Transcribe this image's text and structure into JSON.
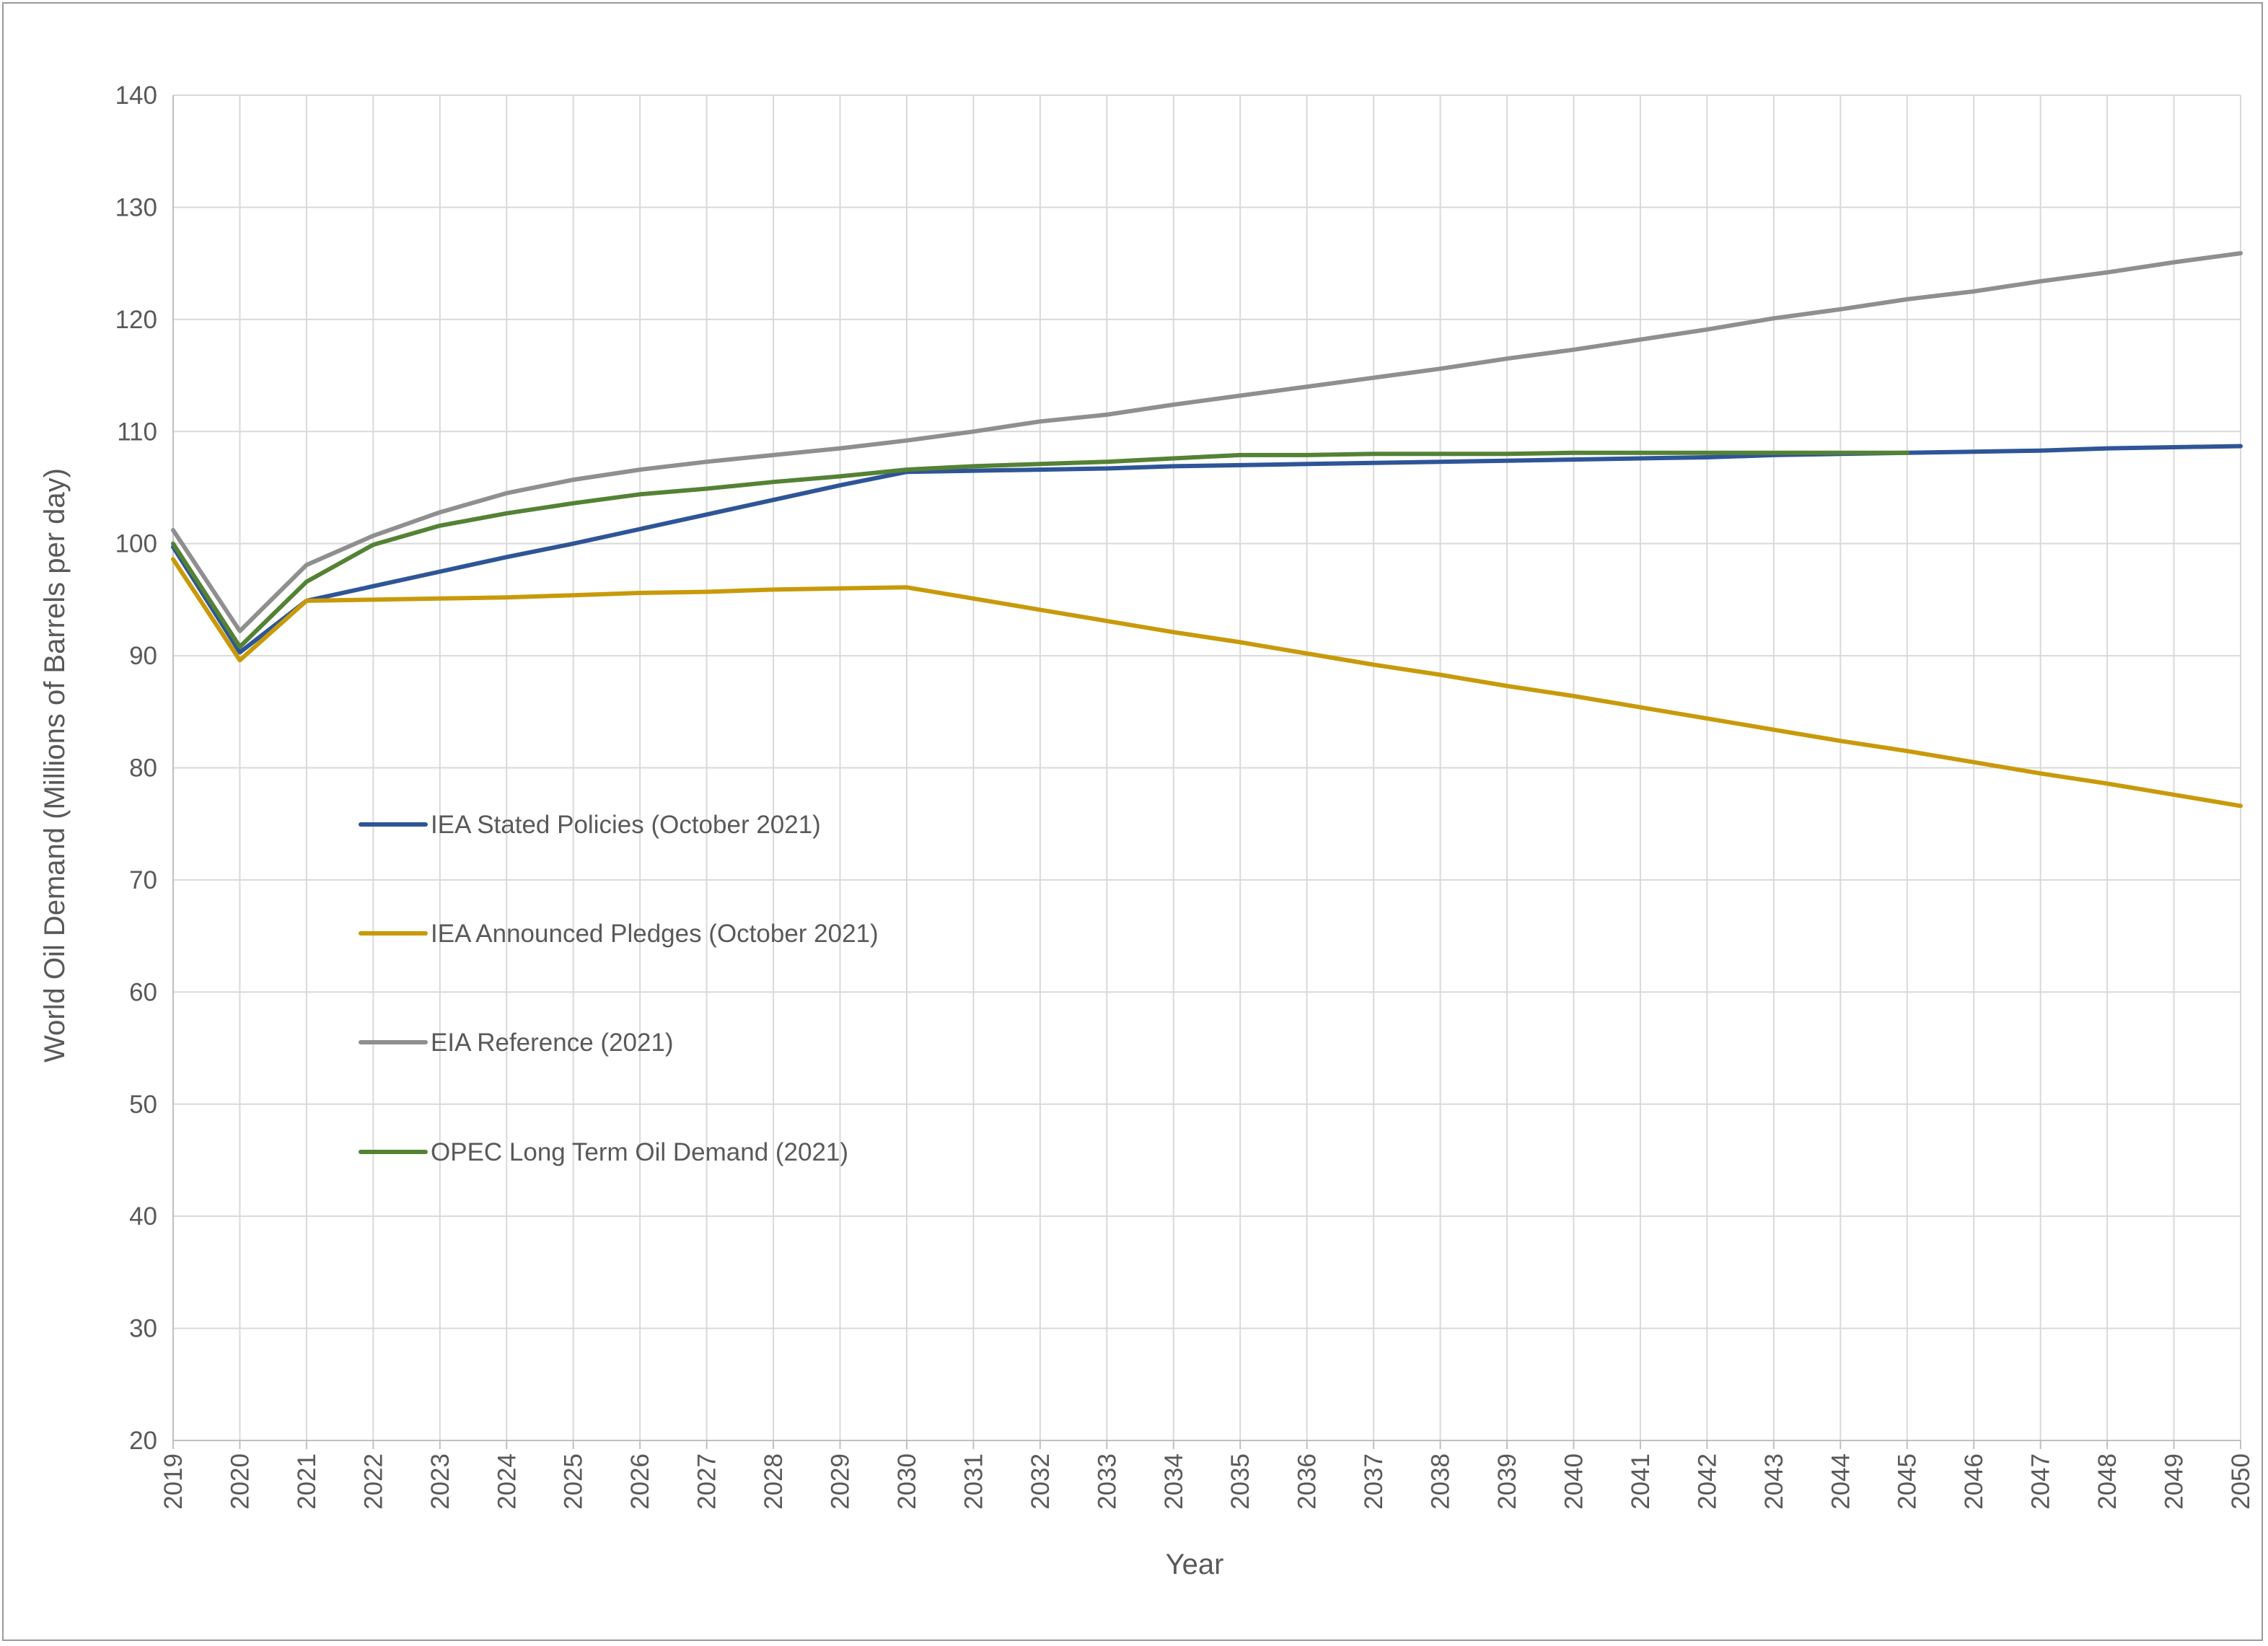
{
  "chart_data": {
    "type": "line",
    "title": "",
    "xlabel": "Year",
    "ylabel": "World Oil Demand (Millions of Barrels per day)",
    "ylim": [
      20,
      140
    ],
    "yticks": [
      "20",
      "30",
      "40",
      "50",
      "60",
      "70",
      "80",
      "90",
      "100",
      "110",
      "120",
      "130",
      "140"
    ],
    "x": [
      "2019",
      "2020",
      "2021",
      "2022",
      "2023",
      "2024",
      "2025",
      "2026",
      "2027",
      "2028",
      "2029",
      "2030",
      "2031",
      "2032",
      "2033",
      "2034",
      "2035",
      "2036",
      "2037",
      "2038",
      "2039",
      "2040",
      "2041",
      "2042",
      "2043",
      "2044",
      "2045",
      "2046",
      "2047",
      "2048",
      "2049",
      "2050"
    ],
    "grid": true,
    "legend_position": "left-inside",
    "series": [
      {
        "name": "IEA Stated Policies (October 2021)",
        "color": "#2e5597",
        "values": [
          99.7,
          90.3,
          94.9,
          96.2,
          97.5,
          98.8,
          100.0,
          101.3,
          102.6,
          103.9,
          105.2,
          106.4,
          106.5,
          106.6,
          106.7,
          106.9,
          107.0,
          107.1,
          107.2,
          107.3,
          107.4,
          107.5,
          107.6,
          107.7,
          107.9,
          108.0,
          108.1,
          108.2,
          108.3,
          108.5,
          108.6,
          108.7
        ]
      },
      {
        "name": "IEA Announced Pledges (October 2021)",
        "color": "#c89a0a",
        "values": [
          98.6,
          89.6,
          94.9,
          95.0,
          95.1,
          95.2,
          95.4,
          95.6,
          95.7,
          95.9,
          96.0,
          96.1,
          95.1,
          94.1,
          93.1,
          92.1,
          91.2,
          90.2,
          89.2,
          88.3,
          87.3,
          86.4,
          85.4,
          84.4,
          83.4,
          82.4,
          81.5,
          80.5,
          79.5,
          78.6,
          77.6,
          76.6
        ]
      },
      {
        "name": "EIA Reference (2021)",
        "color": "#8f8f8f",
        "values": [
          101.2,
          92.2,
          98.1,
          100.7,
          102.8,
          104.5,
          105.7,
          106.6,
          107.3,
          107.9,
          108.5,
          109.2,
          110.0,
          110.9,
          111.5,
          112.4,
          113.2,
          114.0,
          114.8,
          115.6,
          116.5,
          117.3,
          118.2,
          119.1,
          120.1,
          120.9,
          121.8,
          122.5,
          123.4,
          124.2,
          125.1,
          125.9
        ]
      },
      {
        "name": "OPEC Long Term Oil Demand (2021)",
        "color": "#548235",
        "values": [
          100.0,
          90.8,
          96.6,
          99.9,
          101.6,
          102.7,
          103.6,
          104.4,
          104.9,
          105.5,
          106.0,
          106.6,
          106.9,
          107.1,
          107.3,
          107.6,
          107.9,
          107.9,
          108.0,
          108.0,
          108.0,
          108.1,
          108.1,
          108.1,
          108.1,
          108.1,
          108.1,
          null,
          null,
          null,
          null,
          null
        ]
      }
    ]
  }
}
